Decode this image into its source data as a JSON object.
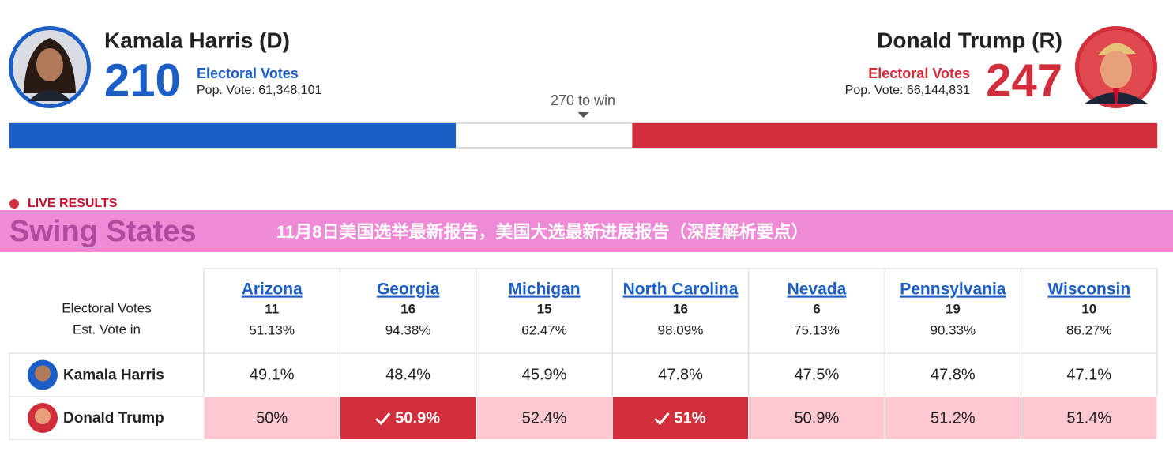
{
  "header": {
    "candidates": [
      {
        "name": "Kamala Harris (D)",
        "electoral_votes": 210,
        "electoral_label": "Electoral Votes",
        "pop_vote": "Pop. Vote: 61,348,101",
        "color": "#1b5fc6"
      },
      {
        "name": "Donald Trump (R)",
        "electoral_votes": 247,
        "electoral_label": "Electoral Votes",
        "pop_vote": "Pop. Vote: 66,144,831",
        "color": "#d12d3a"
      }
    ],
    "to_win": {
      "value": 270,
      "label": "270 to win"
    }
  },
  "live_label": "LIVE RESULTS",
  "banner": {
    "title": "Swing States",
    "overlay": "11月8日美国选举最新报告，美国大选最新进展报告（深度解析要点）"
  },
  "table": {
    "row_labels": [
      "Electoral Votes",
      "Est. Vote in"
    ],
    "candidates": [
      "Kamala Harris",
      "Donald Trump"
    ],
    "states": [
      {
        "name": "Arizona",
        "electoral_votes": 11,
        "est_vote_in": "51.13%",
        "harris": "49.1%",
        "trump": "50%",
        "trump_called": false
      },
      {
        "name": "Georgia",
        "electoral_votes": 16,
        "est_vote_in": "94.38%",
        "harris": "48.4%",
        "trump": "50.9%",
        "trump_called": true
      },
      {
        "name": "Michigan",
        "electoral_votes": 15,
        "est_vote_in": "62.47%",
        "harris": "45.9%",
        "trump": "52.4%",
        "trump_called": false
      },
      {
        "name": "North Carolina",
        "electoral_votes": 16,
        "est_vote_in": "98.09%",
        "harris": "47.8%",
        "trump": "51%",
        "trump_called": true
      },
      {
        "name": "Nevada",
        "electoral_votes": 6,
        "est_vote_in": "75.13%",
        "harris": "47.5%",
        "trump": "50.9%",
        "trump_called": false
      },
      {
        "name": "Pennsylvania",
        "electoral_votes": 19,
        "est_vote_in": "90.33%",
        "harris": "47.8%",
        "trump": "51.2%",
        "trump_called": false
      },
      {
        "name": "Wisconsin",
        "electoral_votes": 10,
        "est_vote_in": "86.27%",
        "harris": "47.1%",
        "trump": "51.4%",
        "trump_called": false
      }
    ]
  }
}
